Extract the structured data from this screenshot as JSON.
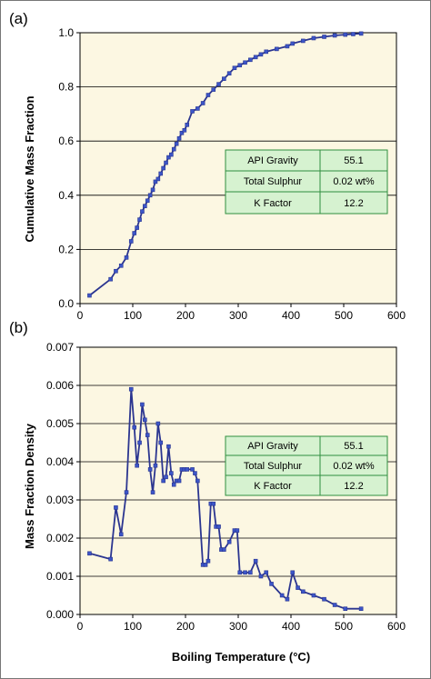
{
  "colors": {
    "plot_bg": "#fcf7e2",
    "line": "#2b3590",
    "marker": "#3c56c8",
    "grid": "#000000",
    "table_bg": "#d6f2d0",
    "table_border": "#2f8f3f"
  },
  "info_table": {
    "rows": [
      {
        "label": "API Gravity",
        "value": "55.1"
      },
      {
        "label": "Total Sulphur",
        "value": "0.02 wt%"
      },
      {
        "label": "K Factor",
        "value": "12.2"
      }
    ]
  },
  "chart_data": [
    {
      "type": "line",
      "panel_label": "(a)",
      "title": "",
      "xlabel": "",
      "ylabel": "Cumulative Mass Fraction",
      "xlim": [
        0,
        600
      ],
      "ylim": [
        0,
        1.0
      ],
      "xticks": [
        0,
        100,
        200,
        300,
        400,
        500,
        600
      ],
      "yticks": [
        0.0,
        0.2,
        0.4,
        0.6,
        0.8,
        1.0
      ],
      "ytick_labels": [
        "0.0",
        "0.2",
        "0.4",
        "0.6",
        "0.8",
        "1.0"
      ],
      "grid": "horizontal",
      "x": [
        18,
        58,
        68,
        78,
        88,
        97,
        103,
        108,
        113,
        118,
        123,
        128,
        133,
        138,
        143,
        148,
        153,
        158,
        163,
        168,
        173,
        178,
        183,
        188,
        193,
        198,
        203,
        213,
        223,
        233,
        243,
        253,
        263,
        273,
        283,
        293,
        303,
        313,
        323,
        333,
        343,
        353,
        373,
        393,
        403,
        423,
        443,
        463,
        483,
        503,
        518,
        533
      ],
      "y": [
        0.03,
        0.09,
        0.12,
        0.14,
        0.17,
        0.23,
        0.26,
        0.28,
        0.31,
        0.34,
        0.36,
        0.38,
        0.4,
        0.42,
        0.45,
        0.46,
        0.48,
        0.5,
        0.52,
        0.54,
        0.55,
        0.57,
        0.59,
        0.61,
        0.63,
        0.64,
        0.66,
        0.71,
        0.72,
        0.74,
        0.77,
        0.79,
        0.81,
        0.83,
        0.85,
        0.87,
        0.88,
        0.89,
        0.9,
        0.91,
        0.92,
        0.93,
        0.94,
        0.95,
        0.96,
        0.97,
        0.98,
        0.985,
        0.99,
        0.993,
        0.995,
        0.997
      ]
    },
    {
      "type": "line",
      "panel_label": "(b)",
      "title": "",
      "xlabel": "Boiling Temperature (°C)",
      "ylabel": "Mass Fraction Density",
      "xlim": [
        0,
        600
      ],
      "ylim": [
        0,
        0.007
      ],
      "xticks": [
        0,
        100,
        200,
        300,
        400,
        500,
        600
      ],
      "yticks": [
        0.0,
        0.001,
        0.002,
        0.003,
        0.004,
        0.005,
        0.006,
        0.007
      ],
      "ytick_labels": [
        "0.000",
        "0.001",
        "0.002",
        "0.003",
        "0.004",
        "0.005",
        "0.006",
        "0.007"
      ],
      "grid": "horizontal",
      "x": [
        18,
        58,
        68,
        78,
        88,
        97,
        103,
        108,
        113,
        118,
        123,
        128,
        133,
        138,
        143,
        148,
        153,
        158,
        163,
        168,
        173,
        178,
        183,
        188,
        193,
        198,
        203,
        213,
        218,
        223,
        233,
        238,
        243,
        248,
        253,
        258,
        263,
        268,
        273,
        283,
        293,
        298,
        303,
        313,
        323,
        333,
        343,
        353,
        363,
        383,
        393,
        403,
        413,
        423,
        443,
        463,
        483,
        503,
        533
      ],
      "y": [
        0.0016,
        0.00145,
        0.0028,
        0.0021,
        0.0032,
        0.0059,
        0.0049,
        0.0039,
        0.0045,
        0.0055,
        0.0051,
        0.0047,
        0.0038,
        0.0032,
        0.0039,
        0.005,
        0.0045,
        0.0035,
        0.0036,
        0.0044,
        0.0037,
        0.0034,
        0.0035,
        0.0035,
        0.0038,
        0.0038,
        0.0038,
        0.0038,
        0.0037,
        0.0035,
        0.0013,
        0.0013,
        0.0014,
        0.0029,
        0.0029,
        0.0023,
        0.0023,
        0.0017,
        0.0017,
        0.0019,
        0.0022,
        0.0022,
        0.0011,
        0.0011,
        0.0011,
        0.0014,
        0.001,
        0.0011,
        0.0008,
        0.0005,
        0.0004,
        0.0011,
        0.0007,
        0.0006,
        0.0005,
        0.0004,
        0.00025,
        0.00015,
        0.00015
      ]
    }
  ]
}
